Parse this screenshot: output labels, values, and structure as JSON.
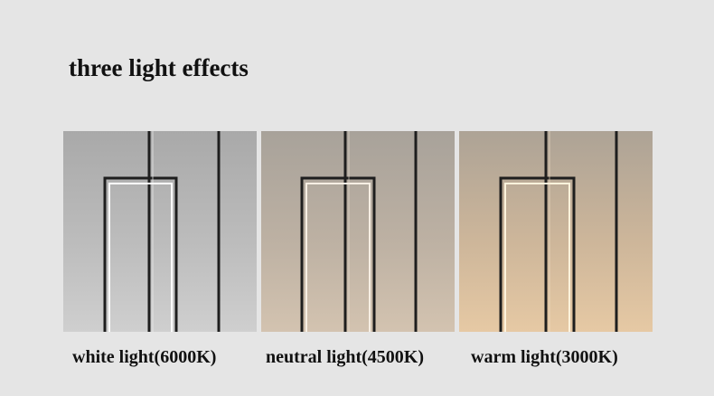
{
  "title": "three light effects",
  "panels": [
    {
      "caption": "white light(6000K)",
      "light_color": "#ffffff"
    },
    {
      "caption": "neutral light(4500K)",
      "light_color": "#f7efe4"
    },
    {
      "caption": "warm light(3000K)",
      "light_color": "#fff3dc"
    }
  ]
}
